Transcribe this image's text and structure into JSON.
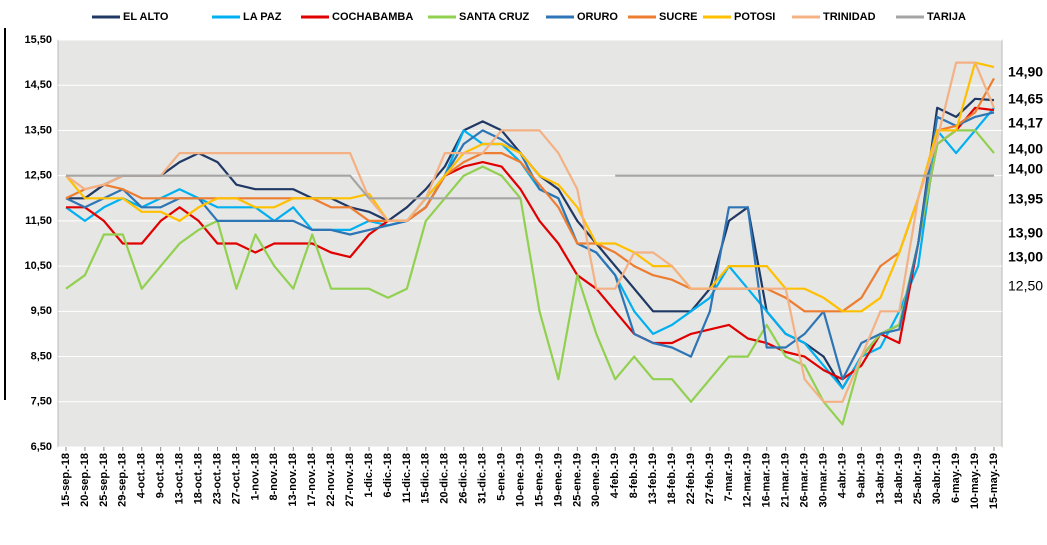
{
  "chart_data": {
    "type": "line",
    "categories": [
      "15-sep.-18",
      "20-sep.-18",
      "25-sep.-18",
      "29-sep.-18",
      "4-oct.-18",
      "9-oct.-18",
      "13-oct.-18",
      "18-oct.-18",
      "23-oct.-18",
      "27-oct.-18",
      "1-nov.-18",
      "8-nov.-18",
      "13-nov.-18",
      "17-nov.-18",
      "22-nov.-18",
      "27-nov.-18",
      "1-dic.-18",
      "6-dic.-18",
      "11-dic.-18",
      "15-dic.-18",
      "20-dic.-18",
      "26-dic.-18",
      "31-dic.-18",
      "5-ene.-19",
      "10-ene.-19",
      "15-ene.-19",
      "19-ene.-19",
      "25-ene.-19",
      "30-ene.-19",
      "4-feb.-19",
      "8-feb.-19",
      "13-feb.-19",
      "18-feb.-19",
      "22-feb.-19",
      "27-feb.-19",
      "7-mar.-19",
      "12-mar.-19",
      "16-mar.-19",
      "21-mar.-19",
      "26-mar.-19",
      "30-mar.-19",
      "4-abr.-19",
      "9-abr.-19",
      "13-abr.-19",
      "18-abr.-19",
      "25-abr.-19",
      "30-abr.-19",
      "6-may.-19",
      "10-may.-19",
      "15-may.-19"
    ],
    "series": [
      {
        "name": "EL ALTO",
        "color": "#1f3864",
        "end_label": "14,17",
        "values": [
          12,
          12,
          12.3,
          12.5,
          12.5,
          12.5,
          12.8,
          13,
          12.8,
          12.3,
          12.2,
          12.2,
          12.2,
          12,
          12,
          11.8,
          11.7,
          11.5,
          11.8,
          12.2,
          12.7,
          13.5,
          13.7,
          13.5,
          13,
          12.5,
          12.2,
          11.5,
          11,
          10.5,
          10,
          9.5,
          9.5,
          9.5,
          10,
          11.5,
          11.8,
          9.5,
          9,
          8.8,
          8.5,
          7.8,
          8.5,
          9,
          9.2,
          11,
          14,
          13.8,
          14.2,
          14.17
        ]
      },
      {
        "name": "LA PAZ",
        "color": "#00b0f0",
        "end_label": "14,00",
        "values": [
          11.8,
          11.5,
          11.8,
          12,
          11.8,
          12,
          12.2,
          12,
          11.8,
          11.8,
          11.8,
          11.5,
          11.8,
          11.3,
          11.3,
          11.3,
          11.5,
          11.4,
          11.5,
          12,
          12.5,
          13.5,
          13.2,
          13.2,
          12.8,
          12.2,
          12,
          11,
          10.8,
          10.3,
          9.5,
          9,
          9.2,
          9.5,
          9.8,
          10.5,
          10,
          9.5,
          9,
          8.8,
          8.3,
          7.8,
          8.5,
          8.7,
          9.5,
          10.5,
          13.5,
          13,
          13.5,
          14
        ]
      },
      {
        "name": "COCHABAMBA",
        "color": "#e00000",
        "end_label": "13,95",
        "values": [
          11.8,
          11.8,
          11.5,
          11,
          11,
          11.5,
          11.8,
          11.5,
          11,
          11,
          10.8,
          11,
          11,
          11,
          10.8,
          10.7,
          11.2,
          11.5,
          11.5,
          11.8,
          12.5,
          12.7,
          12.8,
          12.7,
          12.2,
          11.5,
          11,
          10.3,
          10,
          9.5,
          9,
          8.8,
          8.8,
          9,
          9.1,
          9.2,
          8.9,
          8.8,
          8.6,
          8.5,
          8.2,
          8,
          8.3,
          9,
          8.8,
          11,
          13.2,
          13.5,
          14,
          13.95
        ]
      },
      {
        "name": "SANTA CRUZ",
        "color": "#92d050",
        "end_label": "13,00",
        "values": [
          10,
          10.3,
          11.2,
          11.2,
          10,
          10.5,
          11,
          11.3,
          11.5,
          10,
          11.2,
          10.5,
          10,
          11.2,
          10,
          10,
          10,
          9.8,
          10,
          11.5,
          12,
          12.5,
          12.7,
          12.5,
          12,
          9.5,
          8,
          10.3,
          9,
          8,
          8.5,
          8,
          8,
          7.5,
          8,
          8.5,
          8.5,
          9.2,
          8.5,
          8.3,
          7.5,
          7,
          8.5,
          9,
          9.2,
          11,
          13.2,
          13.5,
          13.5,
          13
        ]
      },
      {
        "name": "ORURO",
        "color": "#2e75b6",
        "end_label": "13,90",
        "values": [
          12,
          11.8,
          12,
          12.2,
          11.8,
          11.8,
          12,
          12,
          11.5,
          11.5,
          11.5,
          11.5,
          11.5,
          11.3,
          11.3,
          11.2,
          11.3,
          11.4,
          11.5,
          11.8,
          12.5,
          13.2,
          13.5,
          13.3,
          13,
          12.2,
          12,
          11,
          10.8,
          10.3,
          9,
          8.8,
          8.7,
          8.5,
          9.5,
          11.8,
          11.8,
          8.7,
          8.7,
          9,
          9.5,
          8,
          8.8,
          9,
          9.1,
          11,
          13.8,
          13.6,
          13.8,
          13.9
        ]
      },
      {
        "name": "SUCRE",
        "color": "#ed7d31",
        "end_label": "14,65",
        "values": [
          12,
          12.2,
          12.3,
          12.2,
          12,
          12,
          12,
          12,
          12,
          12,
          12,
          12,
          12,
          12,
          11.8,
          11.8,
          11.5,
          11.5,
          11.5,
          11.8,
          12.5,
          12.8,
          13,
          13,
          12.8,
          12.3,
          11.8,
          11,
          11,
          10.8,
          10.5,
          10.3,
          10.2,
          10,
          10,
          10,
          10,
          10,
          9.8,
          9.5,
          9.5,
          9.5,
          9.8,
          10.5,
          10.8,
          12,
          13.5,
          13.6,
          13.9,
          14.65
        ]
      },
      {
        "name": "POTOSI",
        "color": "#ffc000",
        "end_label": "14,90",
        "values": [
          12.5,
          12,
          12,
          12,
          11.7,
          11.7,
          11.5,
          11.8,
          12,
          12,
          11.8,
          11.8,
          12,
          12,
          12,
          12,
          12.1,
          11.5,
          11.5,
          12,
          12.5,
          13,
          13.2,
          13.2,
          13,
          12.5,
          12.3,
          11.8,
          11,
          11,
          10.8,
          10.5,
          10.5,
          10,
          10,
          10.5,
          10.5,
          10.5,
          10,
          10,
          9.8,
          9.5,
          9.5,
          9.8,
          10.8,
          12,
          13.5,
          13.5,
          15,
          14.9
        ]
      },
      {
        "name": "TRINIDAD",
        "color": "#f4b183",
        "end_label": "14,00",
        "values": [
          12.5,
          12.2,
          12.3,
          12.5,
          12.5,
          12.5,
          13,
          13,
          13,
          13,
          13,
          13,
          13,
          13,
          13,
          13,
          12,
          11.5,
          11.5,
          12,
          13,
          13,
          13,
          13.5,
          13.5,
          13.5,
          13,
          12.2,
          10,
          10,
          10.8,
          10.8,
          10.5,
          10,
          10,
          10,
          10,
          10,
          10,
          8,
          7.5,
          7.5,
          8.5,
          9.5,
          9.5,
          12,
          13.3,
          15,
          15,
          14
        ]
      },
      {
        "name": "TARIJA",
        "color": "#a5a5a5",
        "end_label": "12,50",
        "values": [
          12.5,
          12.5,
          12.5,
          12.5,
          12.5,
          12.5,
          12.5,
          12.5,
          12.5,
          12.5,
          12.5,
          12.5,
          12.5,
          12.5,
          12.5,
          12.5,
          12,
          12,
          12,
          12,
          12,
          12,
          12,
          12,
          12,
          null,
          null,
          null,
          null,
          12.5,
          12.5,
          12.5,
          12.5,
          12.5,
          12.5,
          12.5,
          12.5,
          12.5,
          12.5,
          12.5,
          12.5,
          12.5,
          12.5,
          12.5,
          12.5,
          12.5,
          12.5,
          12.5,
          12.5,
          12.5
        ]
      }
    ],
    "ylim": [
      6.5,
      15.5
    ],
    "yticks": [
      {
        "value": 6.5,
        "label": "6,50"
      },
      {
        "value": 7.5,
        "label": "7,50"
      },
      {
        "value": 8.5,
        "label": "8,50"
      },
      {
        "value": 9.5,
        "label": "9,50"
      },
      {
        "value": 10.5,
        "label": "10,50"
      },
      {
        "value": 11.5,
        "label": "11,50"
      },
      {
        "value": 12.5,
        "label": "12,50"
      },
      {
        "value": 13.5,
        "label": "13,50"
      },
      {
        "value": 14.5,
        "label": "14,50"
      },
      {
        "value": 15.5,
        "label": "15,50"
      }
    ],
    "grid": true,
    "legend": "top"
  }
}
